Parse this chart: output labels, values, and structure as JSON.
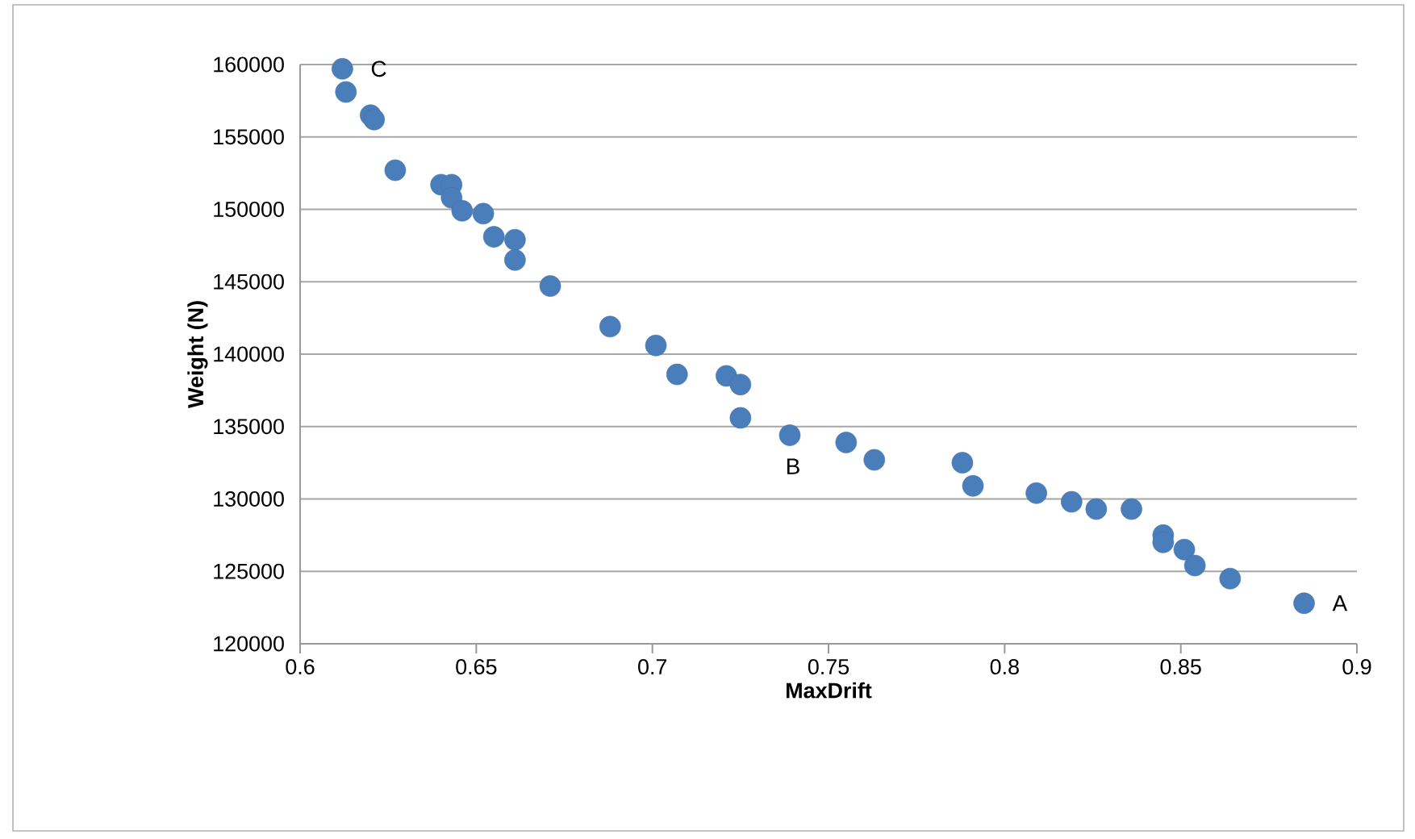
{
  "chart_data": {
    "type": "scatter",
    "xlabel": "MaxDrift",
    "ylabel": "Weight (N)",
    "x": [
      0.612,
      0.613,
      0.62,
      0.621,
      0.627,
      0.64,
      0.643,
      0.643,
      0.646,
      0.652,
      0.655,
      0.661,
      0.661,
      0.671,
      0.688,
      0.701,
      0.707,
      0.721,
      0.725,
      0.725,
      0.739,
      0.755,
      0.763,
      0.788,
      0.791,
      0.809,
      0.819,
      0.826,
      0.836,
      0.845,
      0.845,
      0.851,
      0.854,
      0.864,
      0.885
    ],
    "values": [
      159700,
      158100,
      156500,
      156200,
      152700,
      151700,
      151700,
      150800,
      149900,
      149700,
      148100,
      147900,
      146500,
      144700,
      141900,
      140600,
      138600,
      138500,
      137900,
      135600,
      134400,
      133900,
      132700,
      132500,
      130900,
      130400,
      129800,
      129300,
      129300,
      127500,
      127000,
      126500,
      125400,
      124500,
      122800
    ],
    "color": "#4a7ebb",
    "marker": "circle",
    "grid": "y",
    "xlim": [
      0.6,
      0.9
    ],
    "xticks": [
      0.6,
      0.65,
      0.7,
      0.75,
      0.8,
      0.85,
      0.9
    ],
    "ylim": [
      120000,
      160000
    ],
    "yticks": [
      120000,
      125000,
      130000,
      135000,
      140000,
      145000,
      150000,
      155000,
      160000
    ],
    "annotations": [
      {
        "text": "C",
        "x": 0.612,
        "y": 159700
      },
      {
        "text": "B",
        "x": 0.739,
        "y": 134400
      },
      {
        "text": "A",
        "x": 0.885,
        "y": 122800
      }
    ]
  }
}
